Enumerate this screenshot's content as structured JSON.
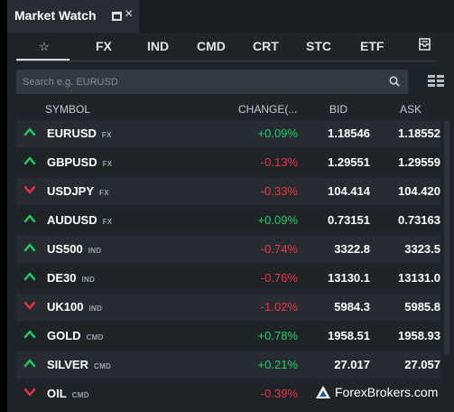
{
  "window": {
    "title": "Market Watch",
    "restore_icon": "restore-window-icon",
    "close_glyph": "×"
  },
  "tabs": [
    {
      "label": "☆",
      "icon": "star-icon",
      "active": true
    },
    {
      "label": "FX"
    },
    {
      "label": "IND"
    },
    {
      "label": "CMD"
    },
    {
      "label": "CRT"
    },
    {
      "label": "STC"
    },
    {
      "label": "ETF"
    },
    {
      "label": "",
      "icon": "inbox-icon"
    }
  ],
  "search": {
    "placeholder": "Search e.g. EURUSD",
    "icon": "search-icon"
  },
  "view_toggle": {
    "icon": "grid-view-icon"
  },
  "table": {
    "columns": {
      "symbol": "SYMBOL",
      "change": "CHANGE(...",
      "bid": "BID",
      "ask": "ASK"
    },
    "rows": [
      {
        "direction": "up",
        "symbol": "EURUSD",
        "category": "FX",
        "change": "+0.09%",
        "bid": "1.18546",
        "ask": "1.18552"
      },
      {
        "direction": "up",
        "symbol": "GBPUSD",
        "category": "FX",
        "change": "-0.13%",
        "bid": "1.29551",
        "ask": "1.29559"
      },
      {
        "direction": "down",
        "symbol": "USDJPY",
        "category": "FX",
        "change": "-0.33%",
        "bid": "104.414",
        "ask": "104.420"
      },
      {
        "direction": "up",
        "symbol": "AUDUSD",
        "category": "FX",
        "change": "+0.09%",
        "bid": "0.73151",
        "ask": "0.73163"
      },
      {
        "direction": "up",
        "symbol": "US500",
        "category": "IND",
        "change": "-0.74%",
        "bid": "3322.8",
        "ask": "3323.5"
      },
      {
        "direction": "up",
        "symbol": "DE30",
        "category": "IND",
        "change": "-0.76%",
        "bid": "13130.1",
        "ask": "13131.0"
      },
      {
        "direction": "down",
        "symbol": "UK100",
        "category": "IND",
        "change": "-1.02%",
        "bid": "5984.3",
        "ask": "5985.8"
      },
      {
        "direction": "up",
        "symbol": "GOLD",
        "category": "CMD",
        "change": "+0.78%",
        "bid": "1958.51",
        "ask": "1958.93"
      },
      {
        "direction": "up",
        "symbol": "SILVER",
        "category": "CMD",
        "change": "+0.21%",
        "bid": "27.017",
        "ask": "27.057"
      },
      {
        "direction": "down",
        "symbol": "OIL",
        "category": "CMD",
        "change": "-0.39%",
        "bid": "",
        "ask": ""
      }
    ]
  },
  "colors": {
    "positive": "#1fce66",
    "negative": "#f0313f",
    "arrow_up": "#1fce66",
    "arrow_down": "#f0313f"
  },
  "watermark": {
    "text": "ForexBrokers.com",
    "logo": "forexbrokers-logo"
  }
}
